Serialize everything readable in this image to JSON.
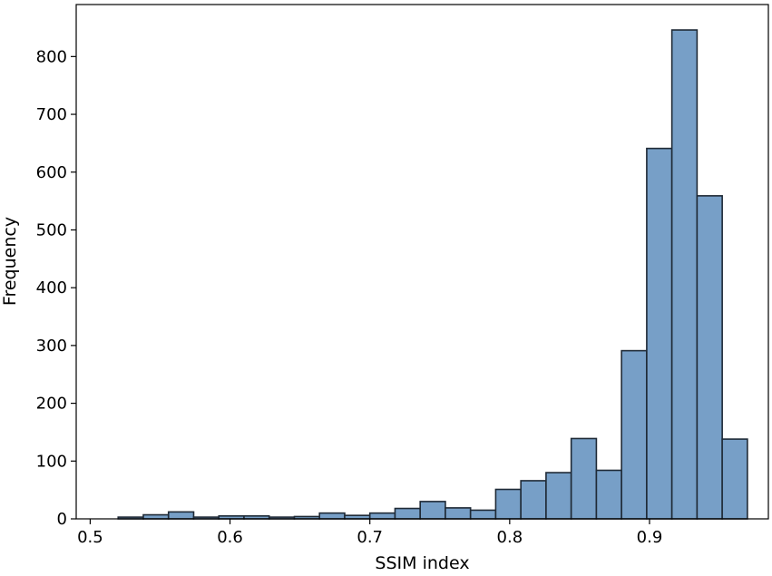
{
  "chart_data": {
    "type": "bar",
    "xlabel": "SSIM index",
    "ylabel": "Frequency",
    "xlim": [
      0.49,
      0.985
    ],
    "ylim": [
      0,
      890
    ],
    "x_ticks": [
      0.5,
      0.6,
      0.7,
      0.8,
      0.9
    ],
    "x_tick_labels": [
      "0.5",
      "0.6",
      "0.7",
      "0.8",
      "0.9"
    ],
    "y_ticks": [
      0,
      100,
      200,
      300,
      400,
      500,
      600,
      700,
      800
    ],
    "y_tick_labels": [
      "0",
      "100",
      "200",
      "300",
      "400",
      "500",
      "600",
      "700",
      "800"
    ],
    "bin_width": 0.018,
    "bins": [
      {
        "x0": 0.52,
        "value": 3
      },
      {
        "x0": 0.538,
        "value": 7
      },
      {
        "x0": 0.556,
        "value": 12
      },
      {
        "x0": 0.574,
        "value": 3
      },
      {
        "x0": 0.592,
        "value": 5
      },
      {
        "x0": 0.61,
        "value": 5
      },
      {
        "x0": 0.628,
        "value": 3
      },
      {
        "x0": 0.646,
        "value": 4
      },
      {
        "x0": 0.664,
        "value": 10
      },
      {
        "x0": 0.682,
        "value": 6
      },
      {
        "x0": 0.7,
        "value": 10
      },
      {
        "x0": 0.718,
        "value": 18
      },
      {
        "x0": 0.736,
        "value": 30
      },
      {
        "x0": 0.754,
        "value": 19
      },
      {
        "x0": 0.772,
        "value": 15
      },
      {
        "x0": 0.79,
        "value": 51
      },
      {
        "x0": 0.808,
        "value": 66
      },
      {
        "x0": 0.826,
        "value": 80
      },
      {
        "x0": 0.844,
        "value": 139
      },
      {
        "x0": 0.862,
        "value": 84
      },
      {
        "x0": 0.88,
        "value": 291
      },
      {
        "x0": 0.898,
        "value": 641
      },
      {
        "x0": 0.916,
        "value": 846
      },
      {
        "x0": 0.934,
        "value": 559
      },
      {
        "x0": 0.952,
        "value": 138
      }
    ],
    "bar_color": "#779fc7",
    "edge_color": "#1f2a36",
    "grid": false,
    "legend": false
  }
}
